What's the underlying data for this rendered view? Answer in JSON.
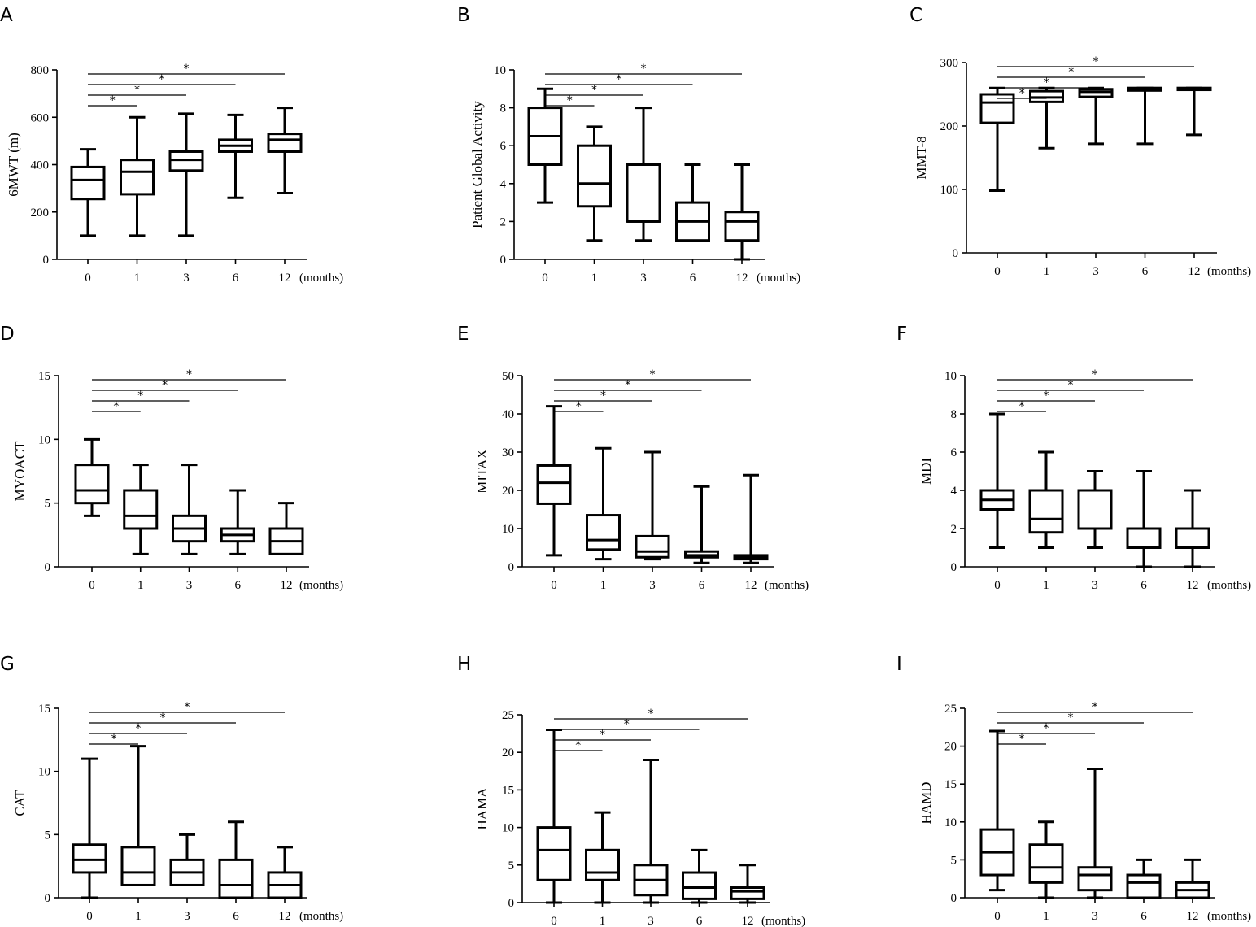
{
  "figure": {
    "x_unit_label": "(months)"
  },
  "chart_data": [
    {
      "panel": "A",
      "type": "boxplot",
      "ylabel": "6MWT (m)",
      "categories": [
        "0",
        "1",
        "3",
        "6",
        "12"
      ],
      "ylim": [
        0,
        800
      ],
      "yticks": [
        0,
        200,
        400,
        600,
        800
      ],
      "boxes": [
        {
          "min": 100,
          "q1": 255,
          "median": 335,
          "q3": 390,
          "max": 465
        },
        {
          "min": 100,
          "q1": 275,
          "median": 370,
          "q3": 420,
          "max": 600
        },
        {
          "min": 100,
          "q1": 375,
          "median": 420,
          "q3": 455,
          "max": 615
        },
        {
          "min": 260,
          "q1": 455,
          "median": 480,
          "q3": 505,
          "max": 610
        },
        {
          "min": 280,
          "q1": 455,
          "median": 505,
          "q3": 530,
          "max": 640
        }
      ],
      "significance": [
        {
          "from": "0",
          "to": "1",
          "label": "*"
        },
        {
          "from": "0",
          "to": "3",
          "label": "*"
        },
        {
          "from": "0",
          "to": "6",
          "label": "*"
        },
        {
          "from": "0",
          "to": "12",
          "label": "*"
        }
      ]
    },
    {
      "panel": "B",
      "type": "boxplot",
      "ylabel": "Patient Global Activity",
      "categories": [
        "0",
        "1",
        "3",
        "6",
        "12"
      ],
      "ylim": [
        0,
        10
      ],
      "yticks": [
        0,
        2,
        4,
        6,
        8,
        10
      ],
      "boxes": [
        {
          "min": 3,
          "q1": 5,
          "median": 6.5,
          "q3": 8,
          "max": 9
        },
        {
          "min": 1,
          "q1": 2.8,
          "median": 4,
          "q3": 6,
          "max": 7
        },
        {
          "min": 1,
          "q1": 2,
          "median": 2,
          "q3": 5,
          "max": 8
        },
        {
          "min": 1,
          "q1": 1,
          "median": 2,
          "q3": 3,
          "max": 5
        },
        {
          "min": 0,
          "q1": 1,
          "median": 2,
          "q3": 2.5,
          "max": 5
        }
      ],
      "significance": [
        {
          "from": "0",
          "to": "1",
          "label": "*"
        },
        {
          "from": "0",
          "to": "3",
          "label": "*"
        },
        {
          "from": "0",
          "to": "6",
          "label": "*"
        },
        {
          "from": "0",
          "to": "12",
          "label": "*"
        }
      ]
    },
    {
      "panel": "C",
      "type": "boxplot",
      "ylabel": "MMT-8",
      "categories": [
        "0",
        "1",
        "3",
        "6",
        "12"
      ],
      "ylim": [
        0,
        300
      ],
      "yticks": [
        0,
        100,
        200,
        300
      ],
      "boxes": [
        {
          "min": 98,
          "q1": 205,
          "median": 237,
          "q3": 250,
          "max": 260
        },
        {
          "min": 165,
          "q1": 238,
          "median": 245,
          "q3": 255,
          "max": 260
        },
        {
          "min": 172,
          "q1": 246,
          "median": 254,
          "q3": 258,
          "max": 260
        },
        {
          "min": 172,
          "q1": 256,
          "median": 258,
          "q3": 260,
          "max": 260
        },
        {
          "min": 186,
          "q1": 257,
          "median": 258,
          "q3": 260,
          "max": 260
        }
      ],
      "significance": [
        {
          "from": "0",
          "to": "1",
          "label": "*"
        },
        {
          "from": "0",
          "to": "3",
          "label": "*"
        },
        {
          "from": "0",
          "to": "6",
          "label": "*"
        },
        {
          "from": "0",
          "to": "12",
          "label": "*"
        }
      ]
    },
    {
      "panel": "D",
      "type": "boxplot",
      "ylabel": "MYOACT",
      "categories": [
        "0",
        "1",
        "3",
        "6",
        "12"
      ],
      "ylim": [
        0,
        15
      ],
      "yticks": [
        0,
        5,
        10,
        15
      ],
      "boxes": [
        {
          "min": 4,
          "q1": 5,
          "median": 6,
          "q3": 8,
          "max": 10
        },
        {
          "min": 1,
          "q1": 3,
          "median": 4,
          "q3": 6,
          "max": 8
        },
        {
          "min": 1,
          "q1": 2,
          "median": 3,
          "q3": 4,
          "max": 8
        },
        {
          "min": 1,
          "q1": 2,
          "median": 2.5,
          "q3": 3,
          "max": 6
        },
        {
          "min": 1,
          "q1": 1,
          "median": 2,
          "q3": 3,
          "max": 5
        }
      ],
      "significance": [
        {
          "from": "0",
          "to": "1",
          "label": "*"
        },
        {
          "from": "0",
          "to": "3",
          "label": "*"
        },
        {
          "from": "0",
          "to": "6",
          "label": "*"
        },
        {
          "from": "0",
          "to": "12",
          "label": "*"
        }
      ]
    },
    {
      "panel": "E",
      "type": "boxplot",
      "ylabel": "MITAX",
      "categories": [
        "0",
        "1",
        "3",
        "6",
        "12"
      ],
      "ylim": [
        0,
        50
      ],
      "yticks": [
        0,
        10,
        20,
        30,
        40,
        50
      ],
      "boxes": [
        {
          "min": 3,
          "q1": 16.5,
          "median": 22,
          "q3": 26.5,
          "max": 42
        },
        {
          "min": 2,
          "q1": 4.5,
          "median": 7,
          "q3": 13.5,
          "max": 31
        },
        {
          "min": 2,
          "q1": 2.5,
          "median": 4,
          "q3": 8,
          "max": 30
        },
        {
          "min": 1,
          "q1": 2.5,
          "median": 3,
          "q3": 4,
          "max": 21
        },
        {
          "min": 1,
          "q1": 2,
          "median": 2.5,
          "q3": 3,
          "max": 24
        }
      ],
      "significance": [
        {
          "from": "0",
          "to": "1",
          "label": "*"
        },
        {
          "from": "0",
          "to": "3",
          "label": "*"
        },
        {
          "from": "0",
          "to": "6",
          "label": "*"
        },
        {
          "from": "0",
          "to": "12",
          "label": "*"
        }
      ]
    },
    {
      "panel": "F",
      "type": "boxplot",
      "ylabel": "MDI",
      "categories": [
        "0",
        "1",
        "3",
        "6",
        "12"
      ],
      "ylim": [
        0,
        10
      ],
      "yticks": [
        0,
        2,
        4,
        6,
        8,
        10
      ],
      "boxes": [
        {
          "min": 1,
          "q1": 3,
          "median": 3.5,
          "q3": 4,
          "max": 8
        },
        {
          "min": 1,
          "q1": 1.8,
          "median": 2.5,
          "q3": 4,
          "max": 6
        },
        {
          "min": 1,
          "q1": 2,
          "median": 2,
          "q3": 4,
          "max": 5
        },
        {
          "min": 0,
          "q1": 1,
          "median": 2,
          "q3": 2,
          "max": 5
        },
        {
          "min": 0,
          "q1": 1,
          "median": 1,
          "q3": 2,
          "max": 4
        }
      ],
      "significance": [
        {
          "from": "0",
          "to": "1",
          "label": "*"
        },
        {
          "from": "0",
          "to": "3",
          "label": "*"
        },
        {
          "from": "0",
          "to": "6",
          "label": "*"
        },
        {
          "from": "0",
          "to": "12",
          "label": "*"
        }
      ]
    },
    {
      "panel": "G",
      "type": "boxplot",
      "ylabel": "CAT",
      "categories": [
        "0",
        "1",
        "3",
        "6",
        "12"
      ],
      "ylim": [
        0,
        15
      ],
      "yticks": [
        0,
        5,
        10,
        15
      ],
      "boxes": [
        {
          "min": 0,
          "q1": 2,
          "median": 3,
          "q3": 4.2,
          "max": 11
        },
        {
          "min": 1,
          "q1": 1,
          "median": 2,
          "q3": 4,
          "max": 12
        },
        {
          "min": 1,
          "q1": 1,
          "median": 2,
          "q3": 3,
          "max": 5
        },
        {
          "min": 0,
          "q1": 0,
          "median": 1,
          "q3": 3,
          "max": 6
        },
        {
          "min": 0,
          "q1": 0,
          "median": 1,
          "q3": 2,
          "max": 4
        }
      ],
      "significance": [
        {
          "from": "0",
          "to": "1",
          "label": "*"
        },
        {
          "from": "0",
          "to": "3",
          "label": "*"
        },
        {
          "from": "0",
          "to": "6",
          "label": "*"
        },
        {
          "from": "0",
          "to": "12",
          "label": "*"
        }
      ]
    },
    {
      "panel": "H",
      "type": "boxplot",
      "ylabel": "HAMA",
      "categories": [
        "0",
        "1",
        "3",
        "6",
        "12"
      ],
      "ylim": [
        0,
        25
      ],
      "yticks": [
        0,
        5,
        10,
        15,
        20,
        25
      ],
      "boxes": [
        {
          "min": 0,
          "q1": 3,
          "median": 7,
          "q3": 10,
          "max": 23
        },
        {
          "min": 0,
          "q1": 3,
          "median": 4,
          "q3": 7,
          "max": 12
        },
        {
          "min": 0,
          "q1": 1,
          "median": 3,
          "q3": 5,
          "max": 19
        },
        {
          "min": 0,
          "q1": 0.5,
          "median": 2,
          "q3": 4,
          "max": 7
        },
        {
          "min": 0,
          "q1": 0.5,
          "median": 1.5,
          "q3": 2,
          "max": 5
        }
      ],
      "significance": [
        {
          "from": "0",
          "to": "1",
          "label": "*"
        },
        {
          "from": "0",
          "to": "3",
          "label": "*"
        },
        {
          "from": "0",
          "to": "6",
          "label": "*"
        },
        {
          "from": "0",
          "to": "12",
          "label": "*"
        }
      ]
    },
    {
      "panel": "I",
      "type": "boxplot",
      "ylabel": "HAMD",
      "categories": [
        "0",
        "1",
        "3",
        "6",
        "12"
      ],
      "ylim": [
        0,
        25
      ],
      "yticks": [
        0,
        5,
        10,
        15,
        20,
        25
      ],
      "boxes": [
        {
          "min": 1,
          "q1": 3,
          "median": 6,
          "q3": 9,
          "max": 22
        },
        {
          "min": 0,
          "q1": 2,
          "median": 4,
          "q3": 7,
          "max": 10
        },
        {
          "min": 0,
          "q1": 1,
          "median": 3,
          "q3": 4,
          "max": 17
        },
        {
          "min": 0,
          "q1": 0,
          "median": 2,
          "q3": 3,
          "max": 5
        },
        {
          "min": 0,
          "q1": 0,
          "median": 1,
          "q3": 2,
          "max": 5
        }
      ],
      "significance": [
        {
          "from": "0",
          "to": "1",
          "label": "*"
        },
        {
          "from": "0",
          "to": "3",
          "label": "*"
        },
        {
          "from": "0",
          "to": "6",
          "label": "*"
        },
        {
          "from": "0",
          "to": "12",
          "label": "*"
        }
      ]
    }
  ]
}
